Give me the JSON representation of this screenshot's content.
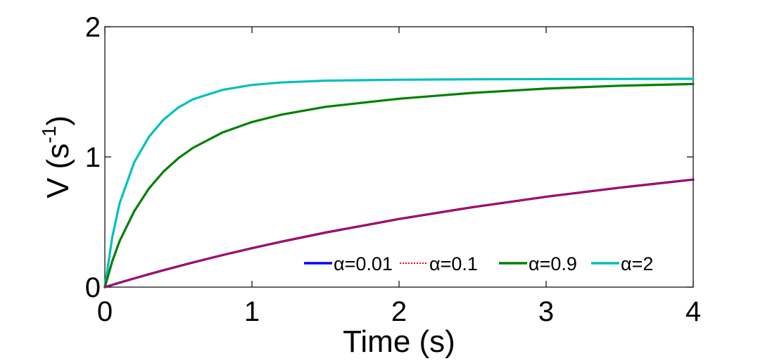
{
  "chart_data": {
    "type": "line",
    "title": "",
    "xlabel": "Time (s)",
    "ylabel": "V (s",
    "ylabel_sup": "-1",
    "ylabel_end": ")",
    "xlim": [
      0,
      4
    ],
    "ylim": [
      0,
      2
    ],
    "xticks": [
      0,
      1,
      2,
      3,
      4
    ],
    "xtick_labels": [
      "0",
      "1",
      "2",
      "3",
      "4"
    ],
    "yticks": [
      0,
      1,
      2
    ],
    "ytick_labels": [
      "0",
      "1",
      "2"
    ],
    "grid": false,
    "legend": "bottom-right, horizontal",
    "x": [
      0,
      0.05,
      0.1,
      0.2,
      0.3,
      0.4,
      0.5,
      0.6,
      0.8,
      1.0,
      1.2,
      1.5,
      2.0,
      2.5,
      3.0,
      3.5,
      4.0
    ],
    "series": [
      {
        "name": "α=0.01",
        "color": "#0000ff",
        "dash": "solid",
        "values": [
          0,
          0.017,
          0.034,
          0.067,
          0.099,
          0.13,
          0.16,
          0.19,
          0.246,
          0.299,
          0.349,
          0.419,
          0.523,
          0.614,
          0.694,
          0.764,
          0.826
        ]
      },
      {
        "name": "α=0.1",
        "color": "#ff0000",
        "dash": "dotted",
        "values": [
          0,
          0.017,
          0.034,
          0.067,
          0.099,
          0.13,
          0.16,
          0.19,
          0.246,
          0.299,
          0.349,
          0.419,
          0.523,
          0.614,
          0.694,
          0.764,
          0.826
        ]
      },
      {
        "name": "α=0.9",
        "color": "#008000",
        "dash": "solid",
        "values": [
          0,
          0.196,
          0.353,
          0.584,
          0.758,
          0.889,
          0.99,
          1.07,
          1.188,
          1.268,
          1.325,
          1.385,
          1.447,
          1.492,
          1.525,
          1.547,
          1.56
        ]
      },
      {
        "name": "α=2",
        "color": "#00bfbf",
        "dash": "solid",
        "values": [
          0,
          0.381,
          0.643,
          0.96,
          1.155,
          1.288,
          1.38,
          1.443,
          1.515,
          1.553,
          1.572,
          1.586,
          1.593,
          1.596,
          1.598,
          1.599,
          1.6
        ]
      }
    ]
  }
}
